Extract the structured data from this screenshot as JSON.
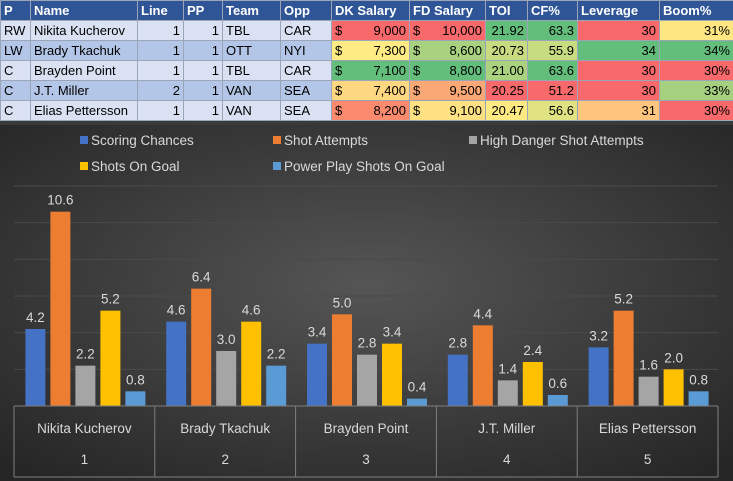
{
  "table": {
    "headers": [
      "P",
      "Name",
      "Line",
      "PP",
      "Team",
      "Opp",
      "DK Salary",
      "FD Salary",
      "TOI",
      "CF%",
      "Leverage",
      "Boom%"
    ],
    "rows": [
      {
        "pos": "RW",
        "name": "Nikita Kucherov",
        "line": "1",
        "pp": "1",
        "team": "TBL",
        "opp": "CAR",
        "dk": "9,000",
        "fd": "10,000",
        "toi": "21.92",
        "cf": "63.3",
        "leverage": "30",
        "boom": "31%"
      },
      {
        "pos": "LW",
        "name": "Brady Tkachuk",
        "line": "1",
        "pp": "1",
        "team": "OTT",
        "opp": "NYI",
        "dk": "7,300",
        "fd": "8,600",
        "toi": "20.73",
        "cf": "55.9",
        "leverage": "34",
        "boom": "34%"
      },
      {
        "pos": "C",
        "name": "Brayden Point",
        "line": "1",
        "pp": "1",
        "team": "TBL",
        "opp": "CAR",
        "dk": "7,100",
        "fd": "8,800",
        "toi": "21.00",
        "cf": "63.6",
        "leverage": "30",
        "boom": "30%"
      },
      {
        "pos": "C",
        "name": "J.T. Miller",
        "line": "2",
        "pp": "1",
        "team": "VAN",
        "opp": "SEA",
        "dk": "7,400",
        "fd": "9,500",
        "toi": "20.25",
        "cf": "51.2",
        "leverage": "30",
        "boom": "33%"
      },
      {
        "pos": "C",
        "name": "Elias Pettersson",
        "line": "1",
        "pp": "1",
        "team": "VAN",
        "opp": "SEA",
        "dk": "8,200",
        "fd": "9,100",
        "toi": "20.47",
        "cf": "56.6",
        "leverage": "31",
        "boom": "30%"
      }
    ],
    "currency_symbol": "$",
    "cell_colors": {
      "dk": [
        "#f8696b",
        "#ffeb84",
        "#63be7b",
        "#fed880",
        "#f98a6d"
      ],
      "fd": [
        "#f8696b",
        "#a8d27f",
        "#63be7b",
        "#fba877",
        "#fee182"
      ],
      "toi": [
        "#63be7b",
        "#c9db81",
        "#aad27f",
        "#f8696b",
        "#feea83"
      ],
      "cf": [
        "#63be7b",
        "#c7db81",
        "#63be7b",
        "#f8696b",
        "#e1e383"
      ],
      "leverage": [
        "#f8696b",
        "#63be7b",
        "#f8696b",
        "#f8696b",
        "#fdc57d"
      ],
      "boom": [
        "#fee783",
        "#63be7b",
        "#f8696b",
        "#a5d07f",
        "#f8696b"
      ]
    }
  },
  "chart_data": {
    "type": "bar",
    "categories": [
      "Nikita Kucherov",
      "Brady Tkachuk",
      "Brayden Point",
      "J.T. Miller",
      "Elias Pettersson"
    ],
    "category_groups": [
      "1",
      "2",
      "3",
      "4",
      "5"
    ],
    "series": [
      {
        "name": "Scoring Chances",
        "color": "#4472c4",
        "values": [
          4.2,
          4.6,
          3.4,
          2.8,
          3.2
        ]
      },
      {
        "name": "Shot Attempts",
        "color": "#ed7d31",
        "values": [
          10.6,
          6.4,
          5.0,
          4.4,
          5.2
        ]
      },
      {
        "name": "High Danger Shot Attempts",
        "color": "#a5a5a5",
        "values": [
          2.2,
          3.0,
          2.8,
          1.4,
          1.6
        ]
      },
      {
        "name": "Shots On Goal",
        "color": "#ffc000",
        "values": [
          5.2,
          4.6,
          3.4,
          2.4,
          2.0
        ]
      },
      {
        "name": "Power Play Shots On Goal",
        "color": "#5b9bd5",
        "values": [
          0.8,
          2.2,
          0.4,
          0.6,
          0.8
        ]
      }
    ],
    "ylim": [
      0,
      12
    ],
    "grid": true,
    "legend_position": "top"
  }
}
